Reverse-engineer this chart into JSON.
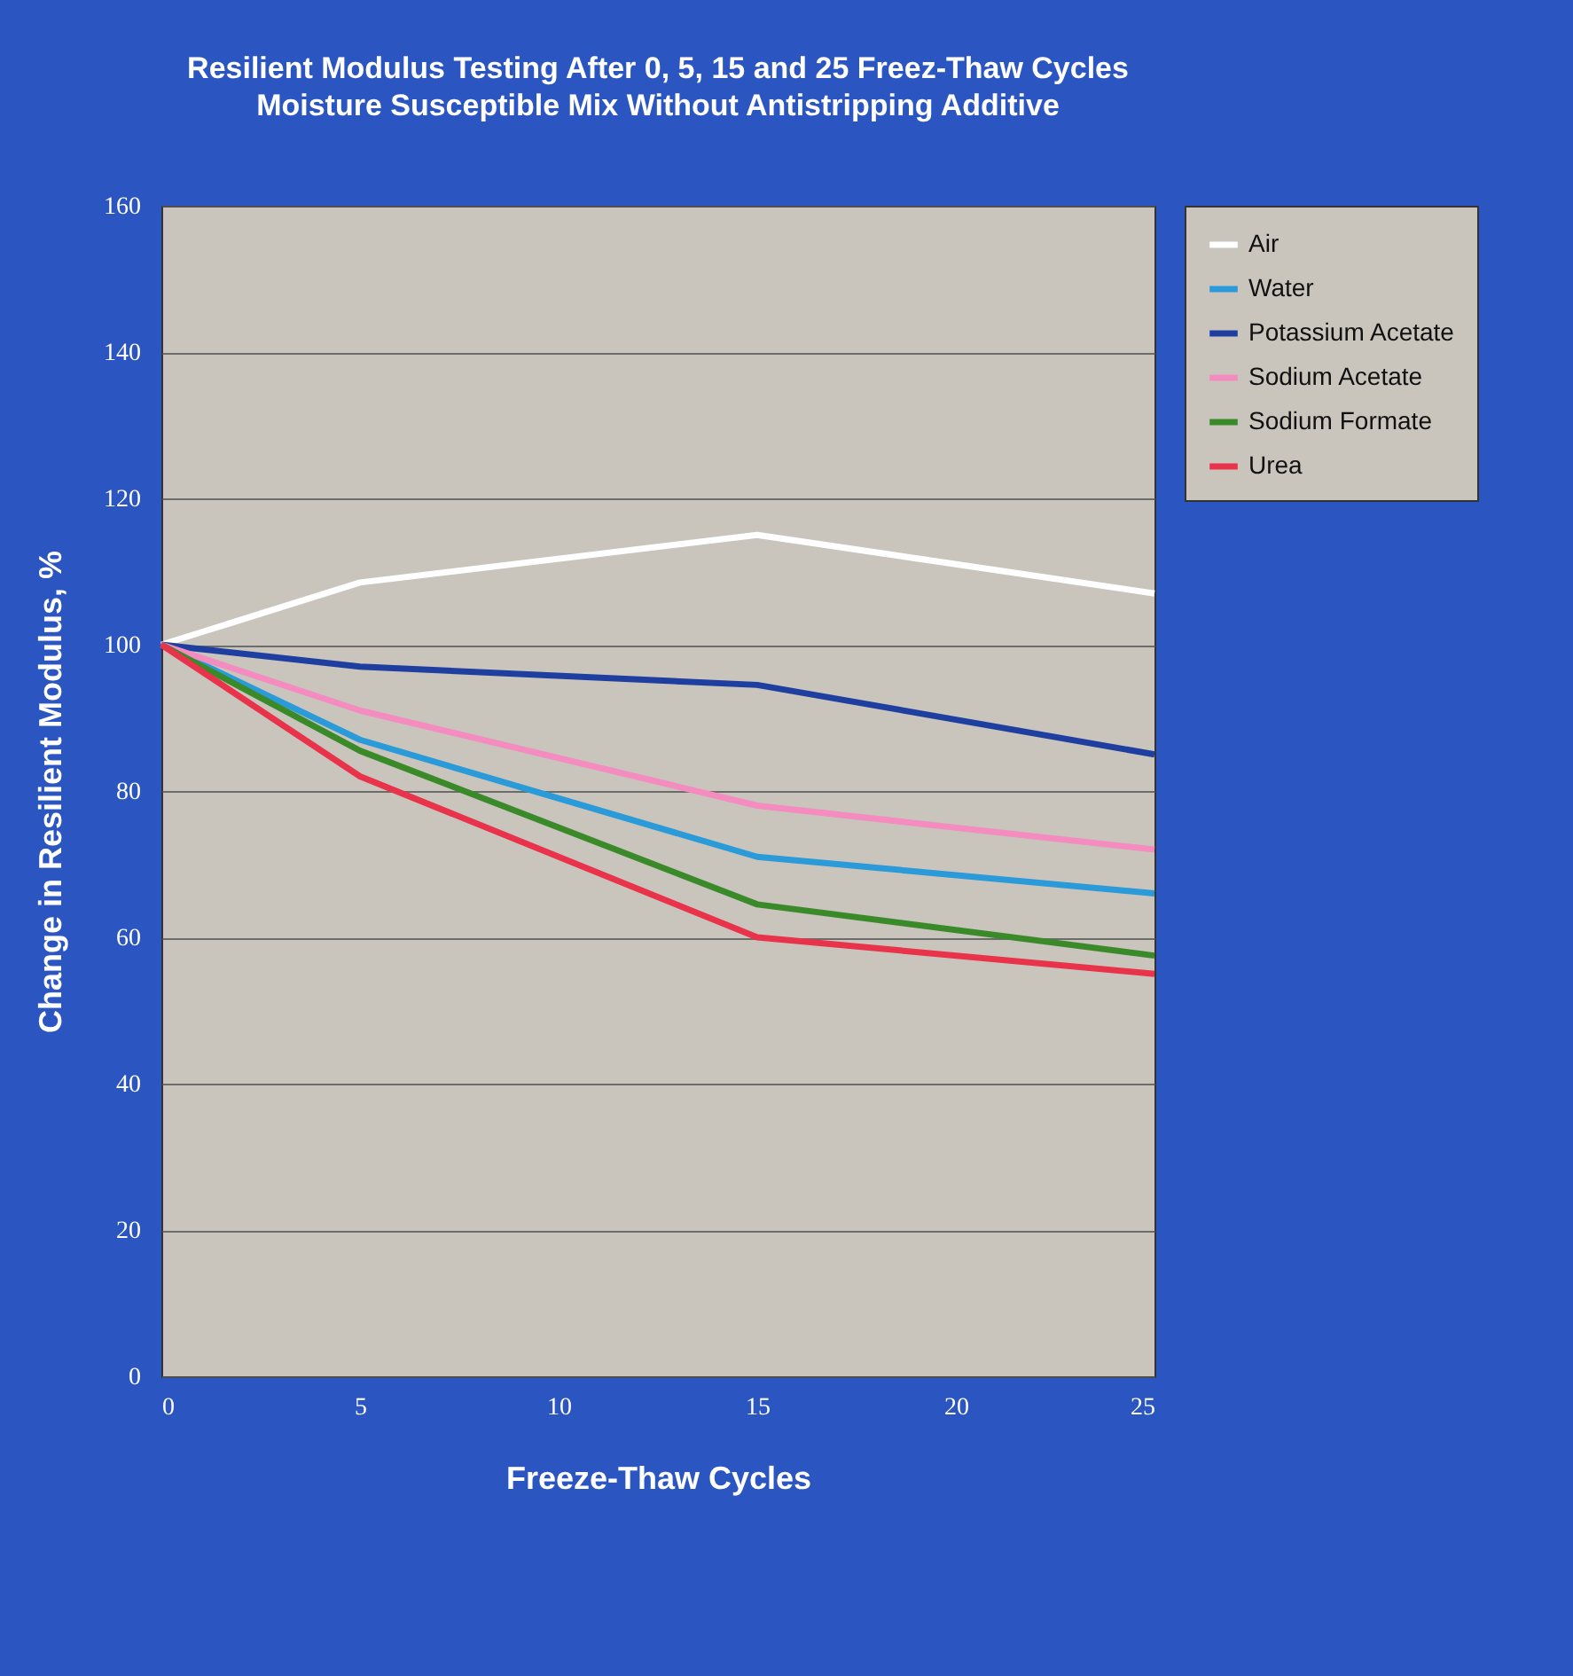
{
  "chart_data": {
    "type": "line",
    "title": "Resilient Modulus Testing After 0, 5, 15 and 25 Freez-Thaw Cycles",
    "subtitle": "Moisture Susceptible Mix Without Antistripping Additive",
    "xlabel": "Freeze-Thaw Cycles",
    "ylabel": "Change in Resilient Modulus, %",
    "x": [
      0,
      5,
      15,
      25
    ],
    "series": [
      {
        "name": "Air",
        "color": "#ffffff",
        "values": [
          100,
          108.5,
          115,
          107
        ]
      },
      {
        "name": "Water",
        "color": "#2a9ad8",
        "values": [
          100,
          87,
          71,
          66
        ]
      },
      {
        "name": "Potassium Acetate",
        "color": "#1f3fa0",
        "values": [
          100,
          97,
          94.5,
          85
        ]
      },
      {
        "name": "Sodium Acetate",
        "color": "#f48cc0",
        "values": [
          100,
          91,
          78,
          72
        ]
      },
      {
        "name": "Sodium Formate",
        "color": "#3a8a2a",
        "values": [
          100,
          85.5,
          64.5,
          57.5
        ]
      },
      {
        "name": "Urea",
        "color": "#e8334a",
        "values": [
          100,
          82,
          60,
          55
        ]
      }
    ],
    "xlim": [
      0,
      25
    ],
    "xticks": [
      0,
      5,
      10,
      15,
      20,
      25
    ],
    "ylim": [
      0,
      160
    ],
    "yticks": [
      0,
      20,
      40,
      60,
      80,
      100,
      120,
      140,
      160
    ],
    "grid": "y",
    "legend": "right",
    "line_style": "solid",
    "marker": "none"
  }
}
